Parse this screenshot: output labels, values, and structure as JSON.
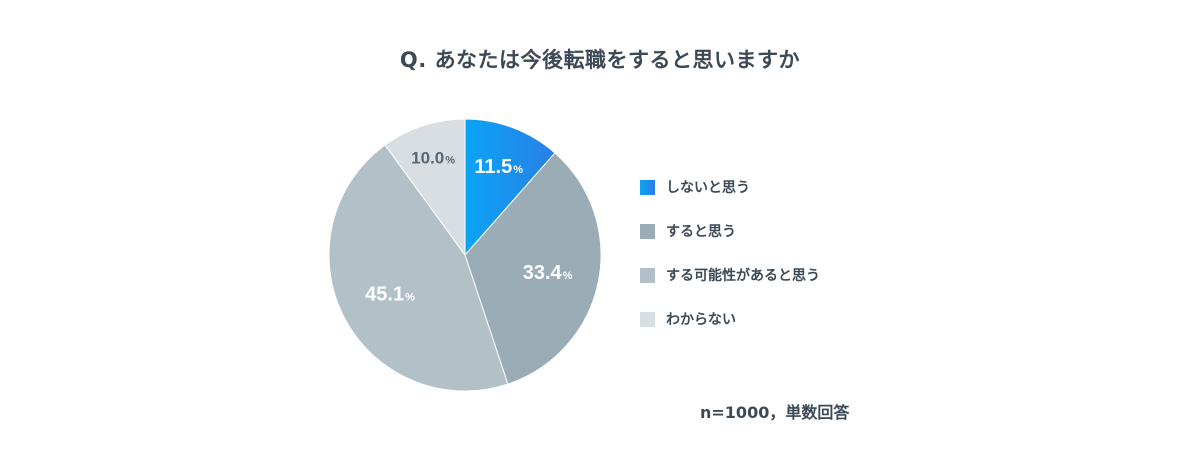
{
  "chart_data": {
    "type": "pie",
    "title": "Q. あなたは今後転職をすると思いますか",
    "slices": [
      {
        "label": "しないと思う",
        "value": 11.5,
        "display": "11.5",
        "unit": "%",
        "color": "#1a90f0"
      },
      {
        "label": "すると思う",
        "value": 33.4,
        "display": "33.4",
        "unit": "%",
        "color": "#9aadb7"
      },
      {
        "label": "する可能性があると思う",
        "value": 45.1,
        "display": "45.1",
        "unit": "%",
        "color": "#b2c0c8"
      },
      {
        "label": "わからない",
        "value": 10.0,
        "display": "10.0",
        "unit": "%",
        "color": "#d8dee2"
      }
    ],
    "start": "12 o'clock",
    "direction": "clockwise",
    "legend_position": "right",
    "note": "n=1000，単数回答"
  }
}
